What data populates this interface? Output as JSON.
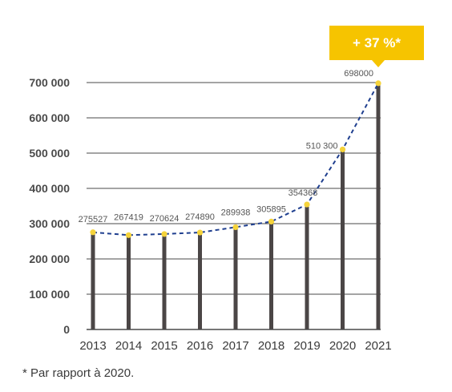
{
  "chart_data": {
    "type": "bar",
    "categories": [
      "2013",
      "2014",
      "2015",
      "2016",
      "2017",
      "2018",
      "2019",
      "2020",
      "2021"
    ],
    "values": [
      275527,
      267419,
      270624,
      274890,
      289938,
      305895,
      354368,
      510300,
      698000
    ],
    "value_labels": [
      "275527",
      "267419",
      "270624",
      "274890",
      "289938",
      "305895",
      "354368",
      "510 300",
      "698000"
    ],
    "ylim": [
      0,
      700000
    ],
    "yticks": [
      0,
      100000,
      200000,
      300000,
      400000,
      500000,
      600000,
      700000
    ],
    "ytick_labels": [
      "0",
      "100 000",
      "200 000",
      "300 000",
      "400 000",
      "500 000",
      "600 000",
      "700 000"
    ],
    "grid": true,
    "trend_line": "dashed",
    "colors": {
      "bar": "#4b4646",
      "gridline": "#4a4a4a",
      "trend_line": "#1f3f8f",
      "marker": "#f5d33b",
      "callout_bg": "#f6c400"
    },
    "annotation": {
      "text": "+ 37 %*",
      "category": "2021"
    },
    "footnote": "* Par rapport à 2020."
  }
}
